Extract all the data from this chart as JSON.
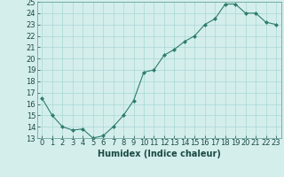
{
  "x": [
    0,
    1,
    2,
    3,
    4,
    5,
    6,
    7,
    8,
    9,
    10,
    11,
    12,
    13,
    14,
    15,
    16,
    17,
    18,
    19,
    20,
    21,
    22,
    23
  ],
  "y": [
    16.5,
    15.0,
    14.0,
    13.7,
    13.8,
    13.0,
    13.2,
    14.0,
    15.0,
    16.3,
    18.8,
    19.0,
    20.3,
    20.8,
    21.5,
    22.0,
    23.0,
    23.5,
    24.8,
    24.8,
    24.0,
    24.0,
    23.2,
    23.0
  ],
  "title": "",
  "xlabel": "Humidex (Indice chaleur)",
  "ylabel": "",
  "ylim": [
    13,
    25
  ],
  "xlim": [
    -0.5,
    23.5
  ],
  "line_color": "#2e7d6e",
  "marker_color": "#2e7d6e",
  "bg_color": "#d4eeec",
  "grid_color": "#a8d8d4",
  "xlabel_fontsize": 7,
  "tick_fontsize": 6,
  "ytick_vals": [
    13,
    14,
    15,
    16,
    17,
    18,
    19,
    20,
    21,
    22,
    23,
    24,
    25
  ],
  "xtick_vals": [
    0,
    1,
    2,
    3,
    4,
    5,
    6,
    7,
    8,
    9,
    10,
    11,
    12,
    13,
    14,
    15,
    16,
    17,
    18,
    19,
    20,
    21,
    22,
    23
  ]
}
